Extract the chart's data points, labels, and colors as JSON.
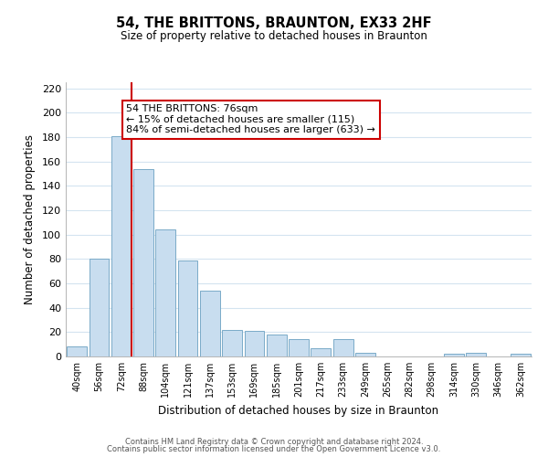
{
  "title": "54, THE BRITTONS, BRAUNTON, EX33 2HF",
  "subtitle": "Size of property relative to detached houses in Braunton",
  "xlabel": "Distribution of detached houses by size in Braunton",
  "ylabel": "Number of detached properties",
  "bar_labels": [
    "40sqm",
    "56sqm",
    "72sqm",
    "88sqm",
    "104sqm",
    "121sqm",
    "137sqm",
    "153sqm",
    "169sqm",
    "185sqm",
    "201sqm",
    "217sqm",
    "233sqm",
    "249sqm",
    "265sqm",
    "282sqm",
    "298sqm",
    "314sqm",
    "330sqm",
    "346sqm",
    "362sqm"
  ],
  "bar_values": [
    8,
    80,
    181,
    154,
    104,
    79,
    54,
    22,
    21,
    18,
    14,
    7,
    14,
    3,
    0,
    0,
    0,
    2,
    3,
    0,
    2
  ],
  "bar_color": "#c8ddef",
  "bar_edge_color": "#7aaac8",
  "vline_index": 2,
  "vline_color": "#cc0000",
  "annotation_text": "54 THE BRITTONS: 76sqm\n← 15% of detached houses are smaller (115)\n84% of semi-detached houses are larger (633) →",
  "annotation_box_color": "#ffffff",
  "annotation_box_edge": "#cc0000",
  "ylim": [
    0,
    225
  ],
  "yticks": [
    0,
    20,
    40,
    60,
    80,
    100,
    120,
    140,
    160,
    180,
    200,
    220
  ],
  "footer_line1": "Contains HM Land Registry data © Crown copyright and database right 2024.",
  "footer_line2": "Contains public sector information licensed under the Open Government Licence v3.0.",
  "background_color": "#ffffff",
  "grid_color": "#d4e4f0"
}
